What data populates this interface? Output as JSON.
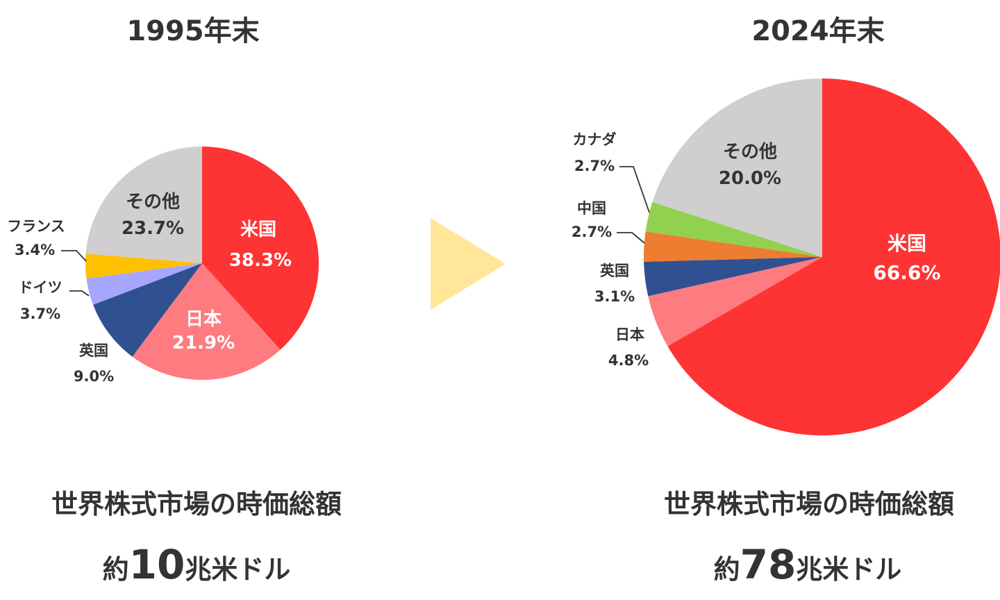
{
  "colors": {
    "us": "#fe3334",
    "japan": "#fe7b80",
    "uk": "#2f5191",
    "germany": "#a6a6fe",
    "france": "#ffc000",
    "china": "#ed7d31",
    "canada": "#92d050",
    "other": "#d0cecf",
    "arrow": "#ffe699"
  },
  "arrow": {
    "icon": "triangle-right-icon"
  },
  "chart_data": [
    {
      "type": "pie",
      "title": "1995年末",
      "caption": "世界株式市場の時価総額",
      "total": {
        "prefix": "約",
        "value": "10",
        "unit": "兆米ドル"
      },
      "slices": [
        {
          "key": "us",
          "name": "米国",
          "value": 38.3,
          "value_label": "38.3%",
          "color": "#fe3334",
          "label_position": "inside",
          "text_color": "#ffffff"
        },
        {
          "key": "japan",
          "name": "日本",
          "value": 21.9,
          "value_label": "21.9%",
          "color": "#fe7b80",
          "label_position": "inside",
          "text_color": "#ffffff"
        },
        {
          "key": "uk",
          "name": "英国",
          "value": 9.0,
          "value_label": "9.0%",
          "color": "#2f5191",
          "label_position": "outside"
        },
        {
          "key": "germany",
          "name": "ドイツ",
          "value": 3.7,
          "value_label": "3.7%",
          "color": "#a6a6fe",
          "label_position": "outside-leader"
        },
        {
          "key": "france",
          "name": "フランス",
          "value": 3.4,
          "value_label": "3.4%",
          "color": "#ffc000",
          "label_position": "outside-leader"
        },
        {
          "key": "other",
          "name": "その他",
          "value": 23.7,
          "value_label": "23.7%",
          "color": "#d0cecf",
          "label_position": "inside",
          "text_color": "#333333"
        }
      ]
    },
    {
      "type": "pie",
      "title": "2024年末",
      "caption": "世界株式市場の時価総額",
      "total": {
        "prefix": "約",
        "value": "78",
        "unit": "兆米ドル"
      },
      "slices": [
        {
          "key": "us",
          "name": "米国",
          "value": 66.6,
          "value_label": "66.6%",
          "color": "#fe3334",
          "label_position": "inside",
          "text_color": "#ffffff"
        },
        {
          "key": "japan",
          "name": "日本",
          "value": 4.8,
          "value_label": "4.8%",
          "color": "#fe7b80",
          "label_position": "outside"
        },
        {
          "key": "uk",
          "name": "英国",
          "value": 3.1,
          "value_label": "3.1%",
          "color": "#2f5191",
          "label_position": "outside"
        },
        {
          "key": "china",
          "name": "中国",
          "value": 2.7,
          "value_label": "2.7%",
          "color": "#ed7d31",
          "label_position": "outside-leader"
        },
        {
          "key": "canada",
          "name": "カナダ",
          "value": 2.7,
          "value_label": "2.7%",
          "color": "#92d050",
          "label_position": "outside-leader"
        },
        {
          "key": "other",
          "name": "その他",
          "value": 20.0,
          "value_label": "20.0%",
          "color": "#d0cecf",
          "label_position": "inside",
          "text_color": "#333333"
        }
      ]
    }
  ]
}
